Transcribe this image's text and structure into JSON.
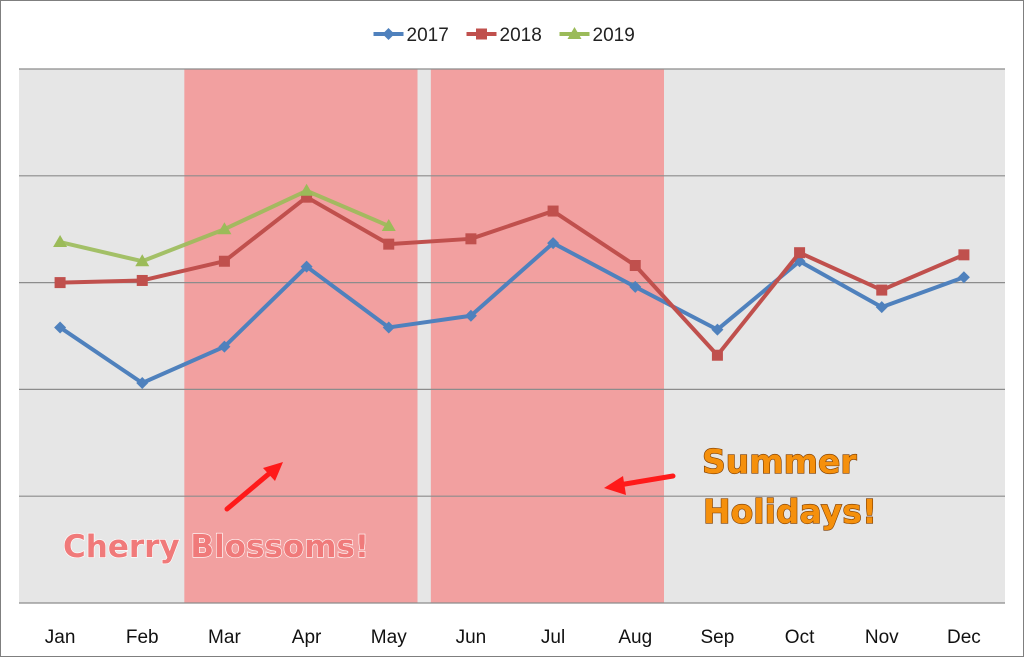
{
  "chart_data": {
    "type": "line",
    "title": "",
    "xlabel": "",
    "ylabel": "",
    "categories": [
      "Jan",
      "Feb",
      "Mar",
      "Apr",
      "May",
      "Jun",
      "Jul",
      "Aug",
      "Sep",
      "Oct",
      "Nov",
      "Dec"
    ],
    "ylim": [
      0,
      5
    ],
    "y_tick_labels_shown": false,
    "grid": "horizontal",
    "legend_position": "top",
    "background_color": "#e6e6e6",
    "series": [
      {
        "name": "2017",
        "color": "#4f81bd",
        "marker": "diamond",
        "values": [
          2.58,
          2.06,
          2.4,
          3.15,
          2.58,
          2.69,
          3.37,
          2.96,
          2.56,
          3.2,
          2.77,
          3.05
        ]
      },
      {
        "name": "2018",
        "color": "#c0504d",
        "marker": "square",
        "values": [
          3.0,
          3.02,
          3.2,
          3.8,
          3.36,
          3.41,
          3.67,
          3.16,
          2.32,
          3.28,
          2.93,
          3.26
        ]
      },
      {
        "name": "2019",
        "color": "#9bbb59",
        "marker": "triangle",
        "values": [
          3.38,
          3.2,
          3.5,
          3.86,
          3.53,
          null,
          null,
          null,
          null,
          null,
          null,
          null
        ]
      }
    ],
    "highlight_bands": [
      {
        "label": "Cherry Blossoms!",
        "from": "Mar",
        "to": "May",
        "color": "#f2a0a0"
      },
      {
        "label": "Summer Holidays!",
        "from": "Jun",
        "to": "Aug",
        "color": "#f2a0a0"
      }
    ],
    "annotations": [
      {
        "text": "Cherry Blossoms!",
        "color": "#f07a7a"
      },
      {
        "text": [
          "Summer",
          "Holidays!"
        ],
        "color": "#f5900c"
      }
    ]
  }
}
